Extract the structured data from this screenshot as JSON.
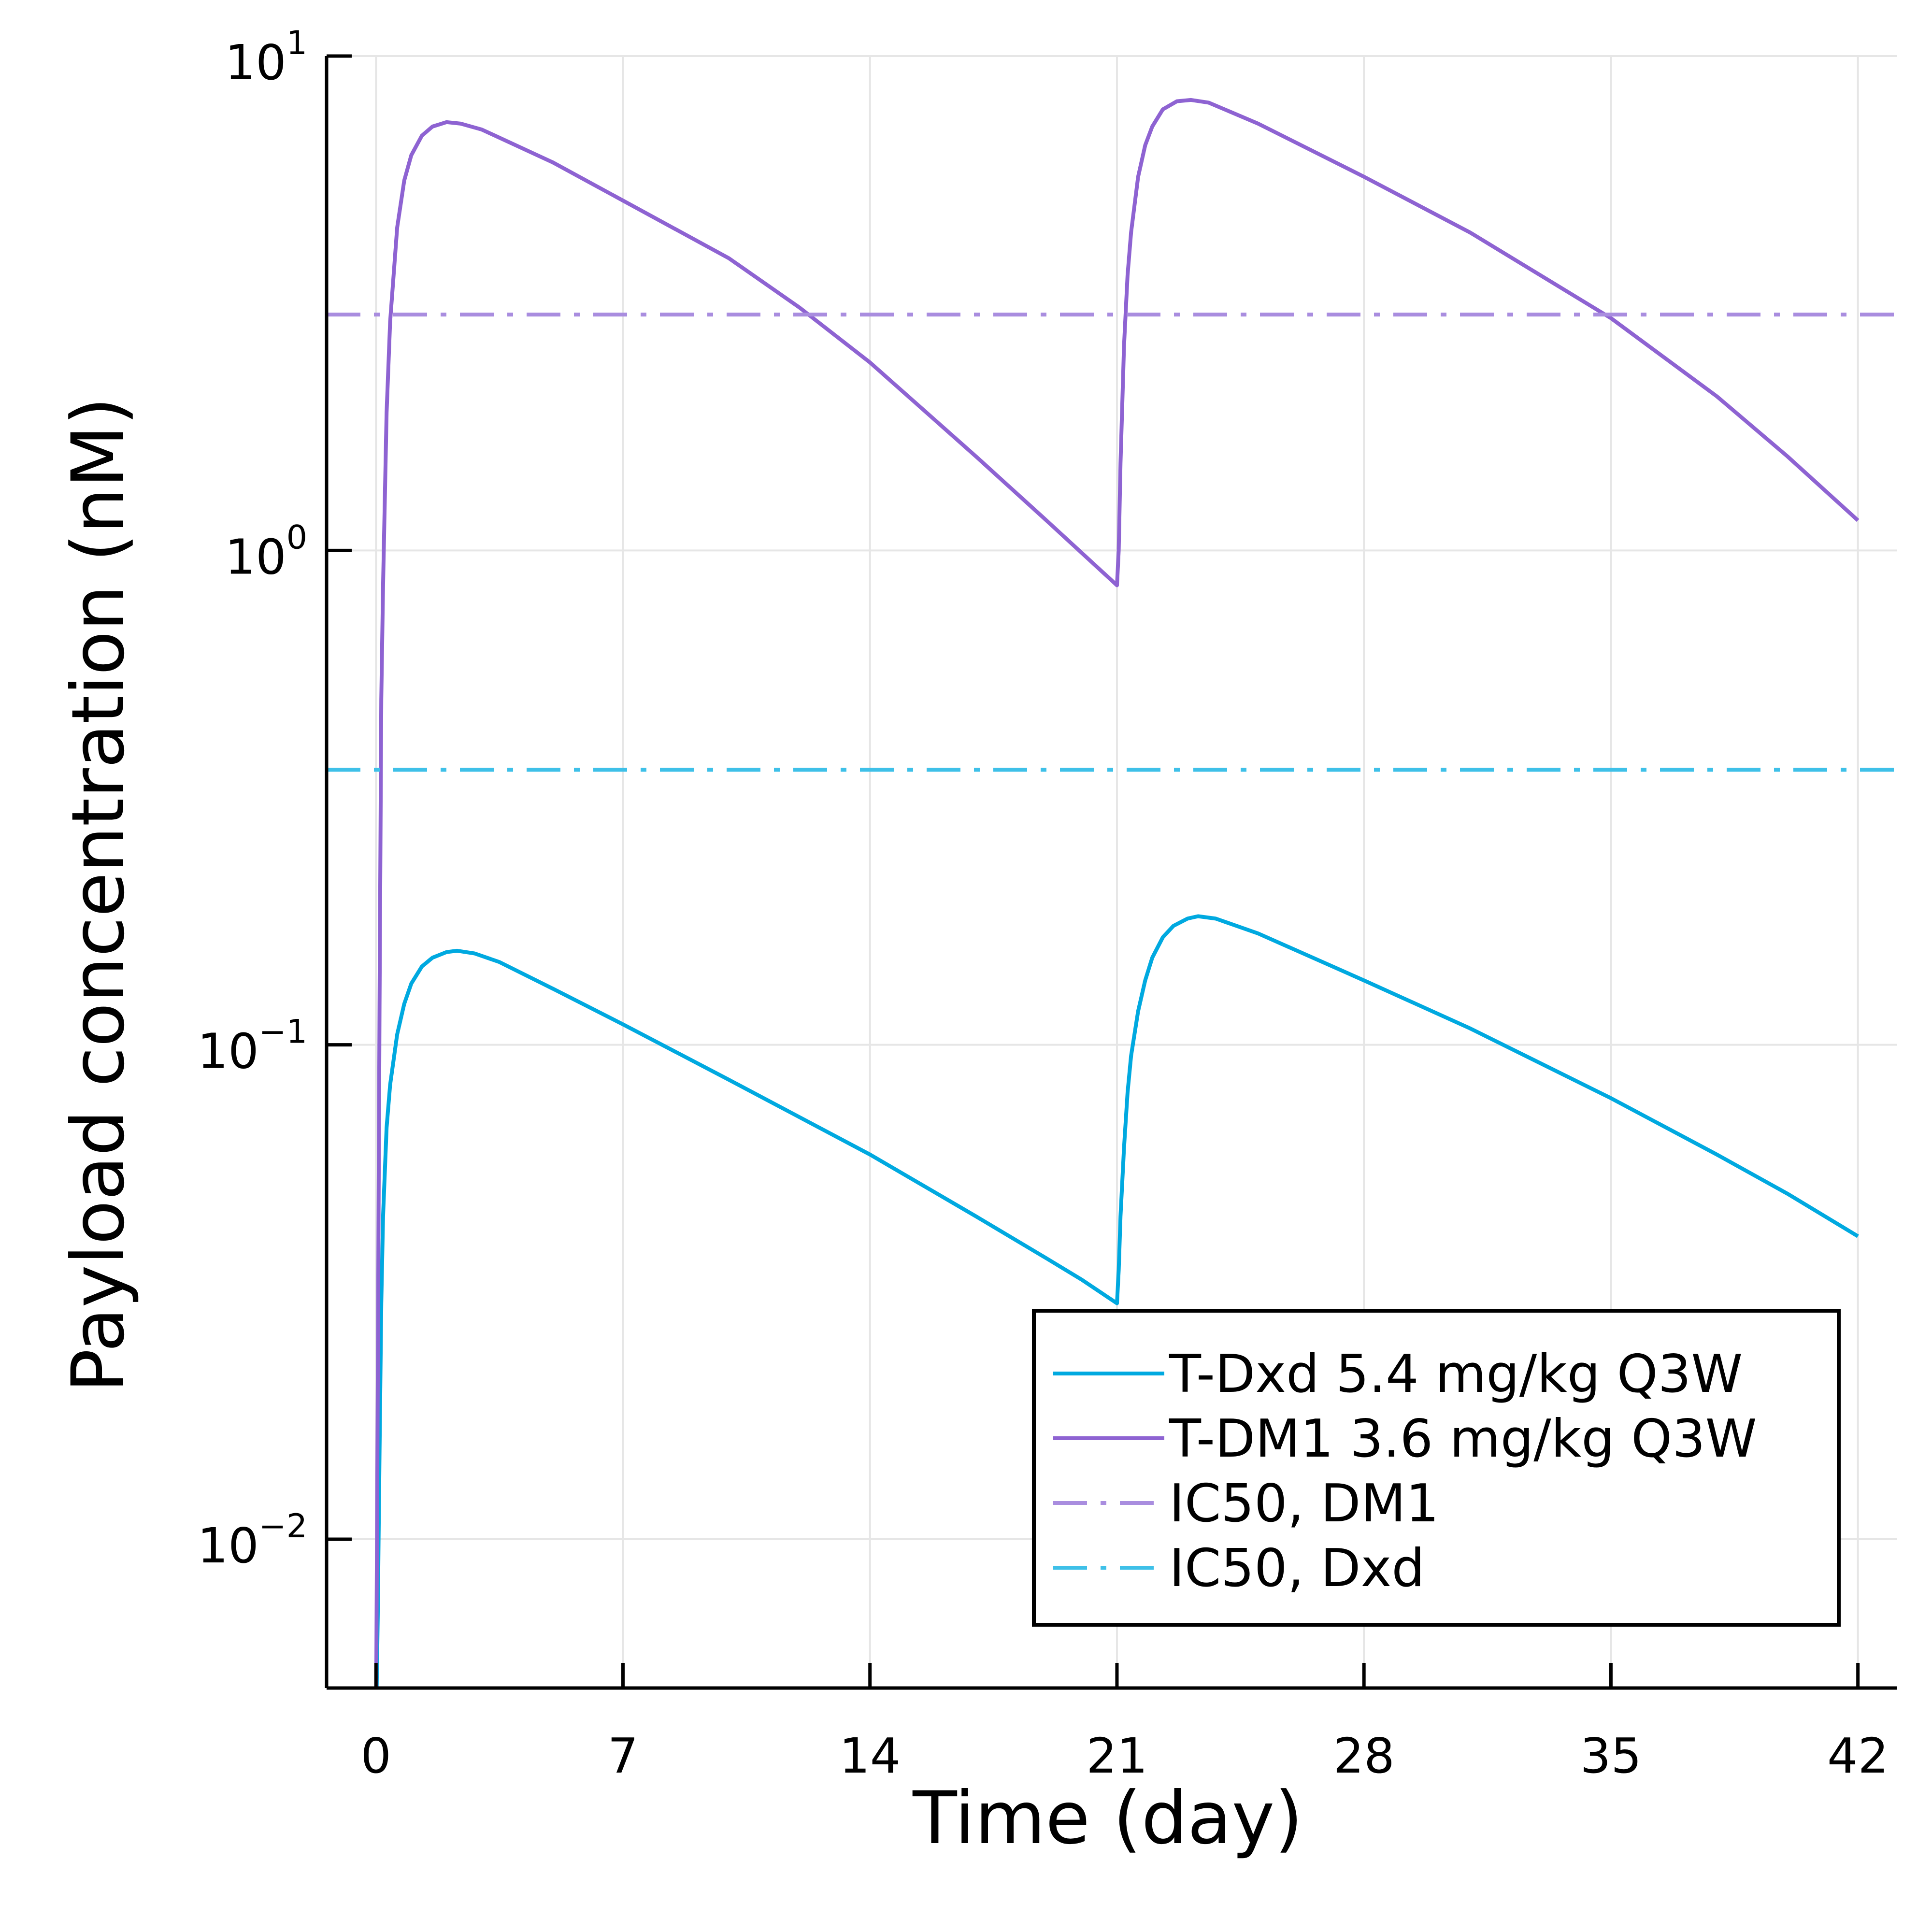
{
  "chart_data": {
    "type": "line",
    "title": "",
    "xlabel": "Time (day)",
    "ylabel": "Payload concentration (nM)",
    "xlim": [
      -1.4,
      43.1
    ],
    "ylim": [
      0.005,
      10
    ],
    "y_scale": "log10",
    "grid": true,
    "legend_position": "bottom-right",
    "x_ticks": [
      {
        "value": 0,
        "label": "0"
      },
      {
        "value": 7,
        "label": "7"
      },
      {
        "value": 14,
        "label": "14"
      },
      {
        "value": 21,
        "label": "21"
      },
      {
        "value": 28,
        "label": "28"
      },
      {
        "value": 35,
        "label": "35"
      },
      {
        "value": 42,
        "label": "42"
      }
    ],
    "y_ticks": [
      {
        "value": 10,
        "base": "10",
        "exp": "1"
      },
      {
        "value": 1,
        "base": "10",
        "exp": "0"
      },
      {
        "value": 0.1,
        "base": "10",
        "exp": "−1"
      },
      {
        "value": 0.01,
        "base": "10",
        "exp": "−2"
      }
    ],
    "series": [
      {
        "name": "T-Dxd 5.4 mg/kg Q3W",
        "style": "solid",
        "color": "#00a9e0",
        "points": [
          [
            0.0,
            0.004
          ],
          [
            0.05,
            0.007
          ],
          [
            0.1,
            0.015
          ],
          [
            0.15,
            0.03
          ],
          [
            0.2,
            0.045
          ],
          [
            0.3,
            0.068
          ],
          [
            0.4,
            0.083
          ],
          [
            0.6,
            0.105
          ],
          [
            0.8,
            0.121
          ],
          [
            1.0,
            0.133
          ],
          [
            1.3,
            0.144
          ],
          [
            1.6,
            0.15
          ],
          [
            2.0,
            0.154
          ],
          [
            2.3,
            0.155
          ],
          [
            2.8,
            0.153
          ],
          [
            3.5,
            0.147
          ],
          [
            5.0,
            0.13
          ],
          [
            7.0,
            0.11
          ],
          [
            10.0,
            0.085
          ],
          [
            14.0,
            0.06
          ],
          [
            17.0,
            0.045
          ],
          [
            19.0,
            0.037
          ],
          [
            20.0,
            0.0335
          ],
          [
            21.0,
            0.03
          ],
          [
            21.05,
            0.035
          ],
          [
            21.1,
            0.045
          ],
          [
            21.2,
            0.062
          ],
          [
            21.3,
            0.08
          ],
          [
            21.4,
            0.095
          ],
          [
            21.6,
            0.117
          ],
          [
            21.8,
            0.135
          ],
          [
            22.0,
            0.15
          ],
          [
            22.3,
            0.165
          ],
          [
            22.6,
            0.174
          ],
          [
            23.0,
            0.18
          ],
          [
            23.3,
            0.182
          ],
          [
            23.8,
            0.18
          ],
          [
            25.0,
            0.168
          ],
          [
            28.0,
            0.135
          ],
          [
            31.0,
            0.108
          ],
          [
            35.0,
            0.078
          ],
          [
            38.0,
            0.06
          ],
          [
            40.0,
            0.05
          ],
          [
            42.0,
            0.041
          ]
        ]
      },
      {
        "name": "T-DM1 3.6 mg/kg Q3W",
        "style": "solid",
        "color": "#8e63d2",
        "points": [
          [
            0.0,
            0.004
          ],
          [
            0.05,
            0.02
          ],
          [
            0.1,
            0.12
          ],
          [
            0.15,
            0.5
          ],
          [
            0.2,
            0.85
          ],
          [
            0.3,
            1.9
          ],
          [
            0.4,
            2.9
          ],
          [
            0.6,
            4.5
          ],
          [
            0.8,
            5.6
          ],
          [
            1.0,
            6.3
          ],
          [
            1.3,
            6.9
          ],
          [
            1.6,
            7.2
          ],
          [
            2.0,
            7.35
          ],
          [
            2.4,
            7.3
          ],
          [
            3.0,
            7.1
          ],
          [
            5.0,
            6.1
          ],
          [
            7.0,
            5.1
          ],
          [
            10.0,
            3.9
          ],
          [
            12.0,
            3.1
          ],
          [
            14.0,
            2.4
          ],
          [
            17.0,
            1.55
          ],
          [
            19.0,
            1.15
          ],
          [
            21.0,
            0.85
          ],
          [
            21.05,
            1.0
          ],
          [
            21.1,
            1.5
          ],
          [
            21.2,
            2.6
          ],
          [
            21.3,
            3.6
          ],
          [
            21.4,
            4.4
          ],
          [
            21.6,
            5.7
          ],
          [
            21.8,
            6.6
          ],
          [
            22.0,
            7.2
          ],
          [
            22.3,
            7.8
          ],
          [
            22.7,
            8.1
          ],
          [
            23.1,
            8.15
          ],
          [
            23.6,
            8.05
          ],
          [
            25.0,
            7.3
          ],
          [
            28.0,
            5.7
          ],
          [
            31.0,
            4.4
          ],
          [
            35.0,
            2.95
          ],
          [
            38.0,
            2.05
          ],
          [
            40.0,
            1.55
          ],
          [
            42.0,
            1.15
          ]
        ]
      },
      {
        "name": "IC50, DM1",
        "style": "dashdot",
        "color": "#a98ddf",
        "y": 3.0
      },
      {
        "name": "IC50, Dxd",
        "style": "dashdot",
        "color": "#3ec0e8",
        "y": 0.36
      }
    ]
  }
}
